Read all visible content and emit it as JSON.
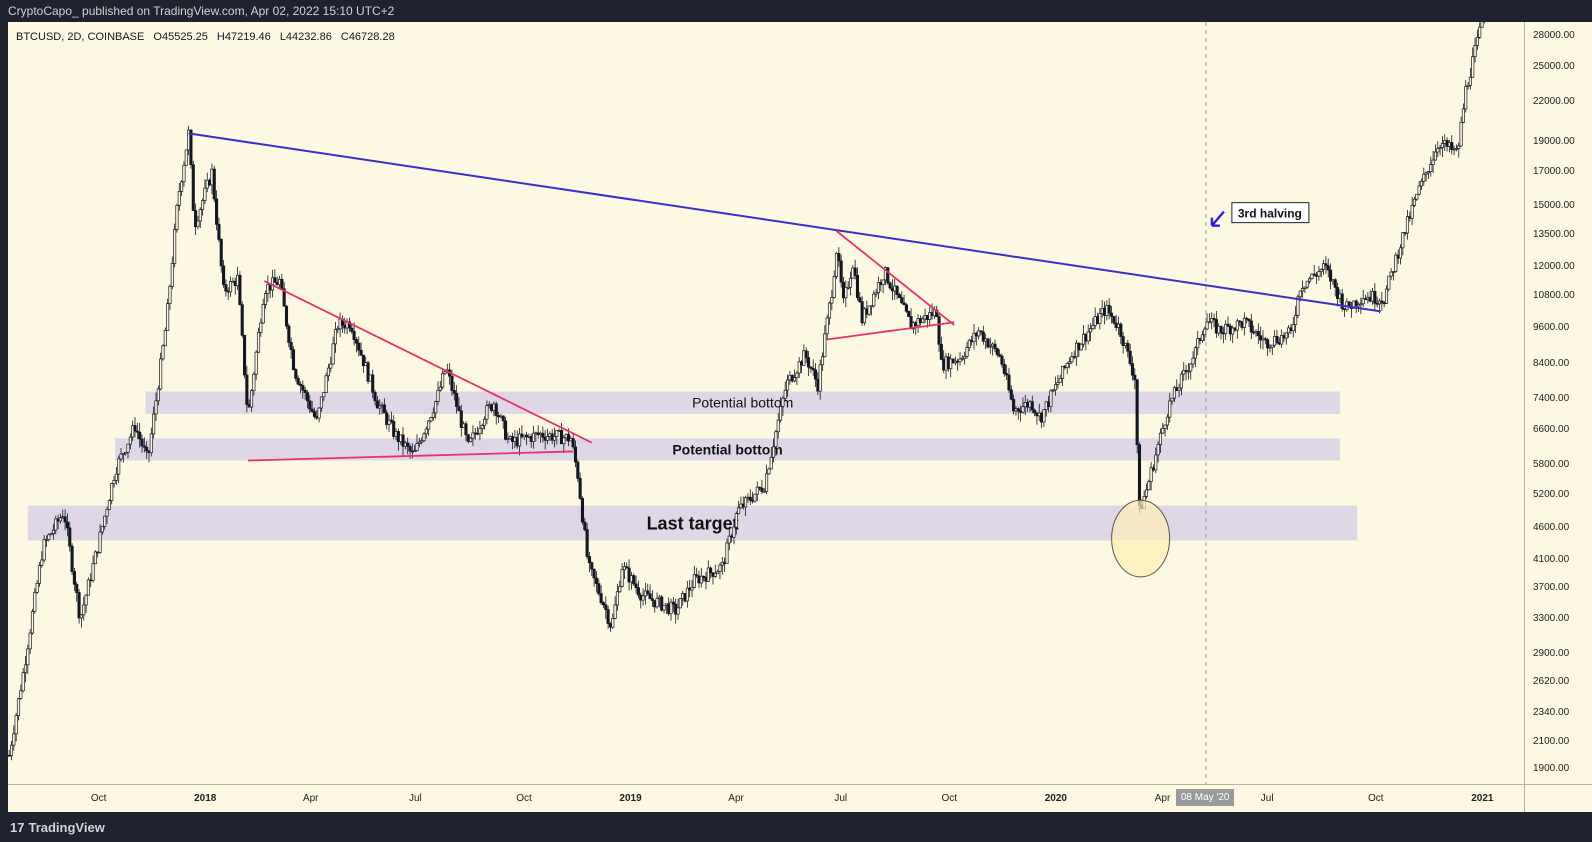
{
  "header": {
    "published": "CryptoCapo_ published on TradingView.com, Apr 02, 2022 15:10 UTC+2"
  },
  "legend": {
    "symbol": "BTCUSD, 2D, COINBASE",
    "open": "O45525.25",
    "high": "H47219.46",
    "low": "L44232.86",
    "close": "C46728.28"
  },
  "footer": {
    "brand": "TradingView",
    "logo_icon": "tradingview-logo-icon"
  },
  "colors": {
    "background": "#fdf8e1",
    "trendline": "#3b2fc9",
    "triangle": "#e8326e",
    "zone": "#d9d0e6",
    "candle": "#131722",
    "circle_fill": "#fff0b3"
  },
  "chart_data": {
    "type": "candlestick",
    "symbol": "BTCUSD",
    "interval": "2D",
    "exchange": "COINBASE",
    "log_scale": true,
    "grid": false,
    "y_ticks": [
      1900,
      2100,
      2340,
      2620,
      2900,
      3300,
      3700,
      4100,
      4600,
      5200,
      5800,
      6600,
      7400,
      8400,
      9600,
      10800,
      12000,
      13500,
      15000,
      17000,
      19000,
      22000,
      25000,
      28000
    ],
    "y_tick_labels": [
      "1900.00",
      "2100.00",
      "2340.00",
      "2620.00",
      "2900.00",
      "3300.00",
      "3700.00",
      "4100.00",
      "4600.00",
      "5200.00",
      "5800.00",
      "6600.00",
      "7400.00",
      "8400.00",
      "9600.00",
      "10800.00",
      "12000.00",
      "13500.00",
      "15000.00",
      "17000.00",
      "19000.00",
      "22000.00",
      "25000.00",
      "28000.00"
    ],
    "x_ticks": [
      {
        "date": "2017-10-01",
        "label": "Oct"
      },
      {
        "date": "2018-01-01",
        "label": "2018"
      },
      {
        "date": "2018-04-01",
        "label": "Apr"
      },
      {
        "date": "2018-07-01",
        "label": "Jul"
      },
      {
        "date": "2018-10-01",
        "label": "Oct"
      },
      {
        "date": "2019-01-01",
        "label": "2019"
      },
      {
        "date": "2019-04-01",
        "label": "Apr"
      },
      {
        "date": "2019-07-01",
        "label": "Jul"
      },
      {
        "date": "2019-10-01",
        "label": "Oct"
      },
      {
        "date": "2020-01-01",
        "label": "2020"
      },
      {
        "date": "2020-04-01",
        "label": "Apr"
      },
      {
        "date": "2020-07-01",
        "label": "Jul"
      },
      {
        "date": "2020-10-01",
        "label": "Oct"
      },
      {
        "date": "2021-01-01",
        "label": "2021"
      }
    ],
    "x_range": [
      "2017-07-15",
      "2021-02-05"
    ],
    "y_range": [
      1800,
      29500
    ],
    "crosshair": {
      "date": "2020-05-08",
      "label": "08 May '20"
    },
    "legend": {
      "symbol": "BTCUSD, 2D, COINBASE",
      "open": 45525.25,
      "high": 47219.46,
      "low": 44232.86,
      "close": 46728.28
    },
    "price_path": [
      [
        "2017-07-16",
        2000
      ],
      [
        "2017-07-28",
        2700
      ],
      [
        "2017-08-14",
        4300
      ],
      [
        "2017-09-01",
        4900
      ],
      [
        "2017-09-15",
        3300
      ],
      [
        "2017-09-30",
        4300
      ],
      [
        "2017-10-15",
        5700
      ],
      [
        "2017-11-01",
        6700
      ],
      [
        "2017-11-12",
        5900
      ],
      [
        "2017-11-28",
        9800
      ],
      [
        "2017-12-08",
        15500
      ],
      [
        "2017-12-17",
        19600
      ],
      [
        "2017-12-22",
        14000
      ],
      [
        "2018-01-06",
        17000
      ],
      [
        "2018-01-16",
        11000
      ],
      [
        "2018-01-28",
        11500
      ],
      [
        "2018-02-06",
        6900
      ],
      [
        "2018-02-20",
        11100
      ],
      [
        "2018-03-05",
        11400
      ],
      [
        "2018-03-18",
        8200
      ],
      [
        "2018-04-06",
        6800
      ],
      [
        "2018-04-24",
        9700
      ],
      [
        "2018-05-05",
        9800
      ],
      [
        "2018-05-28",
        7300
      ],
      [
        "2018-06-12",
        6500
      ],
      [
        "2018-06-28",
        6000
      ],
      [
        "2018-07-18",
        7400
      ],
      [
        "2018-07-26",
        8300
      ],
      [
        "2018-08-14",
        6200
      ],
      [
        "2018-08-28",
        7000
      ],
      [
        "2018-09-05",
        7300
      ],
      [
        "2018-09-18",
        6300
      ],
      [
        "2018-10-15",
        6500
      ],
      [
        "2018-11-10",
        6400
      ],
      [
        "2018-11-16",
        5600
      ],
      [
        "2018-11-25",
        4000
      ],
      [
        "2018-12-08",
        3500
      ],
      [
        "2018-12-15",
        3200
      ],
      [
        "2018-12-24",
        4000
      ],
      [
        "2019-01-10",
        3600
      ],
      [
        "2019-02-08",
        3400
      ],
      [
        "2019-02-24",
        3800
      ],
      [
        "2019-03-20",
        4000
      ],
      [
        "2019-04-02",
        4900
      ],
      [
        "2019-04-25",
        5400
      ],
      [
        "2019-05-14",
        7800
      ],
      [
        "2019-05-30",
        8700
      ],
      [
        "2019-06-10",
        7800
      ],
      [
        "2019-06-22",
        11000
      ],
      [
        "2019-06-26",
        12800
      ],
      [
        "2019-07-02",
        10500
      ],
      [
        "2019-07-10",
        12200
      ],
      [
        "2019-07-18",
        9900
      ],
      [
        "2019-08-06",
        11800
      ],
      [
        "2019-08-29",
        9700
      ],
      [
        "2019-09-20",
        10200
      ],
      [
        "2019-09-24",
        8400
      ],
      [
        "2019-10-10",
        8600
      ],
      [
        "2019-10-26",
        9500
      ],
      [
        "2019-11-14",
        8600
      ],
      [
        "2019-11-25",
        7100
      ],
      [
        "2019-12-10",
        7300
      ],
      [
        "2019-12-18",
        6900
      ],
      [
        "2020-01-15",
        8800
      ],
      [
        "2020-02-12",
        10300
      ],
      [
        "2020-02-24",
        9600
      ],
      [
        "2020-03-08",
        8000
      ],
      [
        "2020-03-12",
        4900
      ],
      [
        "2020-03-18",
        5300
      ],
      [
        "2020-04-06",
        7200
      ],
      [
        "2020-04-29",
        8800
      ],
      [
        "2020-05-08",
        9900
      ],
      [
        "2020-05-20",
        9500
      ],
      [
        "2020-06-10",
        9800
      ],
      [
        "2020-06-28",
        9100
      ],
      [
        "2020-07-20",
        9400
      ],
      [
        "2020-07-28",
        11200
      ],
      [
        "2020-08-18",
        12000
      ],
      [
        "2020-09-05",
        10300
      ],
      [
        "2020-09-20",
        10800
      ],
      [
        "2020-10-08",
        10700
      ],
      [
        "2020-10-21",
        12900
      ],
      [
        "2020-11-05",
        15600
      ],
      [
        "2020-11-24",
        19000
      ],
      [
        "2020-12-10",
        18200
      ],
      [
        "2020-12-17",
        23000
      ],
      [
        "2020-12-30",
        28900
      ],
      [
        "2021-01-02",
        32000
      ]
    ],
    "annotations": {
      "trendline": {
        "from": [
          "2017-12-17",
          19600
        ],
        "through": [
          "2019-06-26",
          13800
        ],
        "to": [
          "2020-10-05",
          10200
        ]
      },
      "triangle_2018_upper": {
        "from": [
          "2018-02-20",
          11400
        ],
        "to": [
          "2018-11-28",
          6300
        ]
      },
      "triangle_2018_lower": {
        "from": [
          "2018-02-06",
          5900
        ],
        "to": [
          "2018-11-12",
          6100
        ]
      },
      "triangle_2019_upper": {
        "from": [
          "2019-06-26",
          13700
        ],
        "to": [
          "2019-10-05",
          9700
        ]
      },
      "triangle_2019_lower": {
        "from": [
          "2019-06-18",
          9200
        ],
        "to": [
          "2019-10-05",
          9800
        ]
      },
      "zones": [
        {
          "label": "Potential bottom",
          "from": "2017-11-10",
          "to": "2020-08-31",
          "low": 7000,
          "high": 7600
        },
        {
          "label": "Potential bottom",
          "from": "2017-10-15",
          "to": "2020-08-31",
          "low": 5900,
          "high": 6400
        },
        {
          "label": "Last target",
          "from": "2017-08-01",
          "to": "2020-09-15",
          "low": 4400,
          "high": 5000
        }
      ],
      "circle": {
        "date": "2020-03-13",
        "low": 3850,
        "high": 5100
      },
      "halving_note": "3rd halving"
    }
  }
}
